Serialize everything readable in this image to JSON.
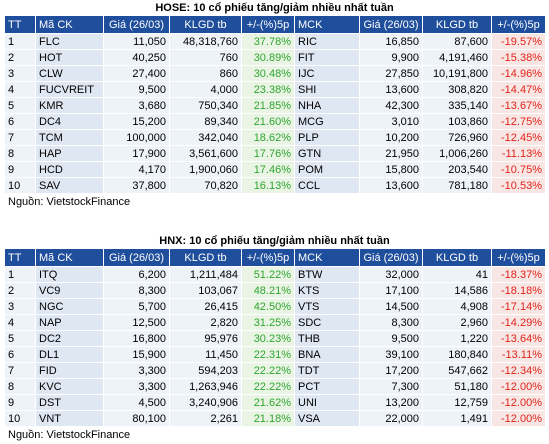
{
  "hose": {
    "title": "HOSE: 10 cổ phiếu tăng/giảm nhiều nhất tuần",
    "headers": [
      "TT",
      "Mã CK",
      "Giá (26/03)",
      "KLGD tb",
      "+/-(%)5p",
      "MCK",
      "Giá (26/03)",
      "KLGD tb",
      "+/-(%)5p"
    ],
    "rows": [
      {
        "tt": "1",
        "up_ck": "FLC",
        "up_price": "11,050",
        "up_vol": "48,318,760",
        "up_pct": "37.78%",
        "dn_ck": "RIC",
        "dn_price": "16,850",
        "dn_vol": "87,600",
        "dn_pct": "-19.57%"
      },
      {
        "tt": "2",
        "up_ck": "HOT",
        "up_price": "40,250",
        "up_vol": "760",
        "up_pct": "30.89%",
        "dn_ck": "FIT",
        "dn_price": "9,900",
        "dn_vol": "4,191,460",
        "dn_pct": "-15.38%"
      },
      {
        "tt": "3",
        "up_ck": "CLW",
        "up_price": "27,400",
        "up_vol": "860",
        "up_pct": "30.48%",
        "dn_ck": "IJC",
        "dn_price": "27,850",
        "dn_vol": "10,191,800",
        "dn_pct": "-14.96%"
      },
      {
        "tt": "4",
        "up_ck": "FUCVREIT",
        "up_price": "9,500",
        "up_vol": "4,000",
        "up_pct": "23.38%",
        "dn_ck": "SHI",
        "dn_price": "13,600",
        "dn_vol": "308,820",
        "dn_pct": "-14.47%"
      },
      {
        "tt": "5",
        "up_ck": "KMR",
        "up_price": "3,680",
        "up_vol": "750,340",
        "up_pct": "21.85%",
        "dn_ck": "NHA",
        "dn_price": "42,300",
        "dn_vol": "335,140",
        "dn_pct": "-13.67%"
      },
      {
        "tt": "6",
        "up_ck": "DC4",
        "up_price": "15,200",
        "up_vol": "89,340",
        "up_pct": "21.60%",
        "dn_ck": "MCG",
        "dn_price": "3,010",
        "dn_vol": "103,860",
        "dn_pct": "-12.75%"
      },
      {
        "tt": "7",
        "up_ck": "TCM",
        "up_price": "100,000",
        "up_vol": "342,040",
        "up_pct": "18.62%",
        "dn_ck": "PLP",
        "dn_price": "10,200",
        "dn_vol": "726,960",
        "dn_pct": "-12.45%"
      },
      {
        "tt": "8",
        "up_ck": "HAP",
        "up_price": "17,900",
        "up_vol": "3,561,600",
        "up_pct": "17.76%",
        "dn_ck": "GTN",
        "dn_price": "21,950",
        "dn_vol": "1,006,260",
        "dn_pct": "-11.13%"
      },
      {
        "tt": "9",
        "up_ck": "HCD",
        "up_price": "4,170",
        "up_vol": "1,900,060",
        "up_pct": "17.46%",
        "dn_ck": "POM",
        "dn_price": "15,800",
        "dn_vol": "203,540",
        "dn_pct": "-10.75%"
      },
      {
        "tt": "10",
        "up_ck": "SAV",
        "up_price": "37,800",
        "up_vol": "70,820",
        "up_pct": "16.13%",
        "dn_ck": "CCL",
        "dn_price": "13,600",
        "dn_vol": "781,180",
        "dn_pct": "-10.53%"
      }
    ],
    "source": "Nguồn: VietstockFinance"
  },
  "hnx": {
    "title": "HNX: 10 cổ phiếu tăng/giảm nhiều nhất tuần",
    "headers": [
      "TT",
      "Mã CK",
      "Giá (26/03)",
      "KLGD tb",
      "+/-(%)5p",
      "MCK",
      "Giá (26/03)",
      "KLGD tb",
      "+/-(%)5p"
    ],
    "rows": [
      {
        "tt": "1",
        "up_ck": "ITQ",
        "up_price": "6,200",
        "up_vol": "1,211,484",
        "up_pct": "51.22%",
        "dn_ck": "BTW",
        "dn_price": "32,000",
        "dn_vol": "41",
        "dn_pct": "-18.37%"
      },
      {
        "tt": "2",
        "up_ck": "VC9",
        "up_price": "8,300",
        "up_vol": "103,067",
        "up_pct": "48.21%",
        "dn_ck": "KTS",
        "dn_price": "17,100",
        "dn_vol": "14,586",
        "dn_pct": "-18.18%"
      },
      {
        "tt": "3",
        "up_ck": "NGC",
        "up_price": "5,700",
        "up_vol": "26,415",
        "up_pct": "42.50%",
        "dn_ck": "VTS",
        "dn_price": "14,500",
        "dn_vol": "4,908",
        "dn_pct": "-17.14%"
      },
      {
        "tt": "4",
        "up_ck": "NAP",
        "up_price": "12,500",
        "up_vol": "2,820",
        "up_pct": "31.25%",
        "dn_ck": "SDC",
        "dn_price": "8,300",
        "dn_vol": "2,960",
        "dn_pct": "-14.29%"
      },
      {
        "tt": "5",
        "up_ck": "DC2",
        "up_price": "16,800",
        "up_vol": "95,976",
        "up_pct": "30.23%",
        "dn_ck": "THB",
        "dn_price": "9,500",
        "dn_vol": "1,220",
        "dn_pct": "-13.64%"
      },
      {
        "tt": "6",
        "up_ck": "DL1",
        "up_price": "15,900",
        "up_vol": "11,450",
        "up_pct": "22.31%",
        "dn_ck": "BNA",
        "dn_price": "39,100",
        "dn_vol": "180,840",
        "dn_pct": "-13.11%"
      },
      {
        "tt": "7",
        "up_ck": "FID",
        "up_price": "3,300",
        "up_vol": "594,203",
        "up_pct": "22.22%",
        "dn_ck": "TDT",
        "dn_price": "17,200",
        "dn_vol": "547,662",
        "dn_pct": "-12.34%"
      },
      {
        "tt": "8",
        "up_ck": "KVC",
        "up_price": "3,300",
        "up_vol": "1,263,946",
        "up_pct": "22.22%",
        "dn_ck": "PCT",
        "dn_price": "7,300",
        "dn_vol": "51,180",
        "dn_pct": "-12.00%"
      },
      {
        "tt": "9",
        "up_ck": "DST",
        "up_price": "4,500",
        "up_vol": "3,240,906",
        "up_pct": "21.62%",
        "dn_ck": "UNI",
        "dn_price": "13,200",
        "dn_vol": "12,759",
        "dn_pct": "-12.00%"
      },
      {
        "tt": "10",
        "up_ck": "VNT",
        "up_price": "80,100",
        "up_vol": "2,261",
        "up_pct": "21.18%",
        "dn_ck": "VSA",
        "dn_price": "22,000",
        "dn_vol": "1,491",
        "dn_pct": "-12.00%"
      }
    ],
    "source": "Nguồn: VietstockFinance"
  },
  "colors": {
    "header_bg": "#1f4e9c",
    "up_text": "#2fa630",
    "down_text": "#e2231a"
  }
}
